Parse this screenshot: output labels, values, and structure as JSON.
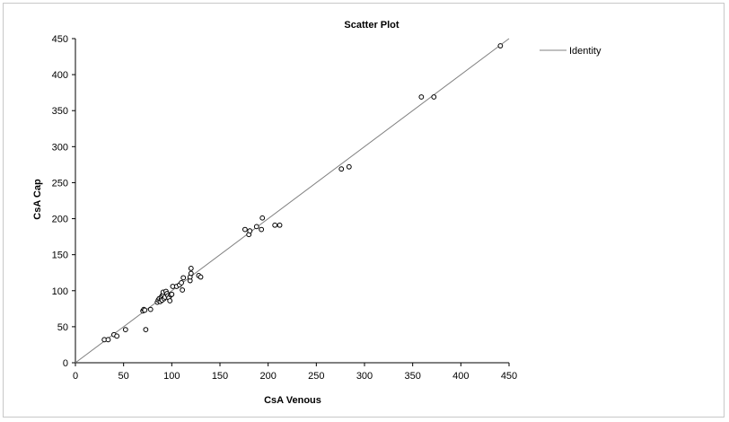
{
  "chart_data": {
    "type": "scatter",
    "title": "Scatter Plot",
    "xlabel": "CsA Venous",
    "ylabel": "CsA Cap",
    "xlim": [
      0,
      450
    ],
    "ylim": [
      0,
      450
    ],
    "xticks": [
      "0",
      "50",
      "100",
      "150",
      "200",
      "250",
      "300",
      "350",
      "400",
      "450"
    ],
    "yticks": [
      "0",
      "50",
      "100",
      "150",
      "200",
      "250",
      "300",
      "350",
      "400",
      "450"
    ],
    "grid": false,
    "legend_position": "top-right",
    "identity_line": {
      "name": "Identity",
      "x": [
        0,
        450
      ],
      "y": [
        0,
        450
      ],
      "color": "#808080"
    },
    "series": [
      {
        "points": [
          [
            30,
            32
          ],
          [
            34,
            32
          ],
          [
            40,
            39
          ],
          [
            43,
            37
          ],
          [
            52,
            46
          ],
          [
            70,
            72
          ],
          [
            71,
            74
          ],
          [
            72,
            73
          ],
          [
            73,
            46
          ],
          [
            78,
            74
          ],
          [
            85,
            84
          ],
          [
            86,
            87
          ],
          [
            87,
            89
          ],
          [
            88,
            85
          ],
          [
            89,
            88
          ],
          [
            89,
            91
          ],
          [
            90,
            87
          ],
          [
            90,
            93
          ],
          [
            91,
            95
          ],
          [
            91,
            98
          ],
          [
            92,
            89
          ],
          [
            93,
            91
          ],
          [
            94,
            99
          ],
          [
            95,
            96
          ],
          [
            96,
            93
          ],
          [
            97,
            90
          ],
          [
            98,
            86
          ],
          [
            99,
            94
          ],
          [
            100,
            95
          ],
          [
            101,
            106
          ],
          [
            105,
            106
          ],
          [
            108,
            108
          ],
          [
            110,
            111
          ],
          [
            111,
            101
          ],
          [
            112,
            118
          ],
          [
            119,
            114
          ],
          [
            119,
            119
          ],
          [
            120,
            124
          ],
          [
            120,
            131
          ],
          [
            128,
            121
          ],
          [
            130,
            119
          ],
          [
            176,
            185
          ],
          [
            180,
            178
          ],
          [
            181,
            183
          ],
          [
            188,
            189
          ],
          [
            193,
            185
          ],
          [
            194,
            201
          ],
          [
            207,
            191
          ],
          [
            212,
            191
          ],
          [
            276,
            269
          ],
          [
            284,
            272
          ],
          [
            359,
            369
          ],
          [
            372,
            369
          ],
          [
            441,
            440
          ]
        ]
      }
    ]
  }
}
